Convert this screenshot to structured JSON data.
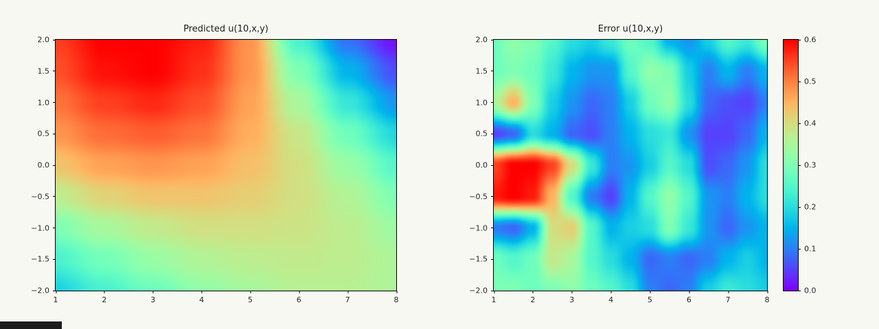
{
  "figure": {
    "background": "#f8f8f3",
    "colormap": "rainbow",
    "colormap_anchors": [
      "#8000ff",
      "#00b0ee",
      "#80ffb4",
      "#ffb461",
      "#ff0000"
    ]
  },
  "chart_data": [
    {
      "type": "heatmap",
      "title": "Predicted u(10,x,y)",
      "xlabel": "",
      "ylabel": "",
      "x_range": [
        1,
        8
      ],
      "y_range": [
        -2,
        2
      ],
      "x_ticks": [
        "1",
        "2",
        "3",
        "4",
        "5",
        "6",
        "7",
        "8"
      ],
      "y_ticks_top_to_bottom": [
        "2.0",
        "1.5",
        "1.0",
        "0.5",
        "0.0",
        "−0.5",
        "−1.0",
        "−1.5",
        "−2.0"
      ],
      "colormap": "rainbow",
      "value_range": [
        0,
        1
      ],
      "grid_rows_top_to_bottom": [
        [
          0.92,
          1.0,
          1.0,
          0.96,
          0.8,
          0.4,
          0.15,
          0.02
        ],
        [
          0.9,
          0.98,
          1.0,
          0.94,
          0.8,
          0.5,
          0.25,
          0.1
        ],
        [
          0.85,
          0.92,
          0.95,
          0.9,
          0.78,
          0.58,
          0.36,
          0.2
        ],
        [
          0.8,
          0.86,
          0.88,
          0.85,
          0.76,
          0.64,
          0.47,
          0.32
        ],
        [
          0.72,
          0.78,
          0.8,
          0.78,
          0.73,
          0.66,
          0.55,
          0.42
        ],
        [
          0.62,
          0.69,
          0.72,
          0.72,
          0.7,
          0.66,
          0.6,
          0.5
        ],
        [
          0.5,
          0.58,
          0.63,
          0.66,
          0.66,
          0.65,
          0.62,
          0.56
        ],
        [
          0.4,
          0.48,
          0.55,
          0.6,
          0.62,
          0.63,
          0.62,
          0.59
        ],
        [
          0.31,
          0.4,
          0.47,
          0.54,
          0.58,
          0.61,
          0.61,
          0.59
        ]
      ]
    },
    {
      "type": "heatmap",
      "title": "Error u(10,x,y)",
      "xlabel": "",
      "ylabel": "",
      "x_range": [
        1,
        8
      ],
      "y_range": [
        -2,
        2
      ],
      "x_ticks": [
        "1",
        "2",
        "3",
        "4",
        "5",
        "6",
        "7",
        "8"
      ],
      "y_ticks_top_to_bottom": [
        "2.0",
        "1.5",
        "1.0",
        "0.5",
        "0.0",
        "−0.5",
        "−1.0",
        "−1.5",
        "−2.0"
      ],
      "colormap": "rainbow",
      "value_range": [
        0,
        0.6
      ],
      "colorbar": {
        "range": [
          0,
          0.6
        ],
        "ticks_top_to_bottom": [
          "0.6",
          "0.5",
          "0.4",
          "0.3",
          "0.2",
          "0.1",
          "0.0"
        ]
      },
      "grid_rows_top_to_bottom": [
        [
          0.28,
          0.32,
          0.3,
          0.25,
          0.2,
          0.18,
          0.22,
          0.28,
          0.25,
          0.15,
          0.12,
          0.18,
          0.25,
          0.22,
          0.3
        ],
        [
          0.28,
          0.3,
          0.28,
          0.22,
          0.15,
          0.12,
          0.12,
          0.25,
          0.32,
          0.3,
          0.18,
          0.1,
          0.15,
          0.1,
          0.15
        ],
        [
          0.35,
          0.45,
          0.3,
          0.18,
          0.12,
          0.08,
          0.1,
          0.18,
          0.28,
          0.32,
          0.2,
          0.08,
          0.06,
          0.05,
          0.1
        ],
        [
          0.05,
          0.08,
          0.2,
          0.15,
          0.08,
          0.06,
          0.1,
          0.15,
          0.2,
          0.22,
          0.12,
          0.05,
          0.05,
          0.08,
          0.15
        ],
        [
          0.55,
          0.6,
          0.6,
          0.55,
          0.4,
          0.22,
          0.1,
          0.12,
          0.18,
          0.25,
          0.2,
          0.06,
          0.08,
          0.12,
          0.2
        ],
        [
          0.58,
          0.6,
          0.58,
          0.45,
          0.25,
          0.1,
          0.05,
          0.15,
          0.25,
          0.32,
          0.25,
          0.12,
          0.1,
          0.15,
          0.2
        ],
        [
          0.1,
          0.08,
          0.15,
          0.4,
          0.42,
          0.25,
          0.15,
          0.18,
          0.2,
          0.3,
          0.22,
          0.12,
          0.08,
          0.12,
          0.15
        ],
        [
          0.28,
          0.25,
          0.28,
          0.38,
          0.35,
          0.25,
          0.2,
          0.15,
          0.08,
          0.1,
          0.08,
          0.1,
          0.15,
          0.18,
          0.15
        ],
        [
          0.3,
          0.3,
          0.28,
          0.3,
          0.32,
          0.28,
          0.25,
          0.2,
          0.1,
          0.08,
          0.1,
          0.18,
          0.22,
          0.2,
          0.18
        ]
      ]
    }
  ]
}
